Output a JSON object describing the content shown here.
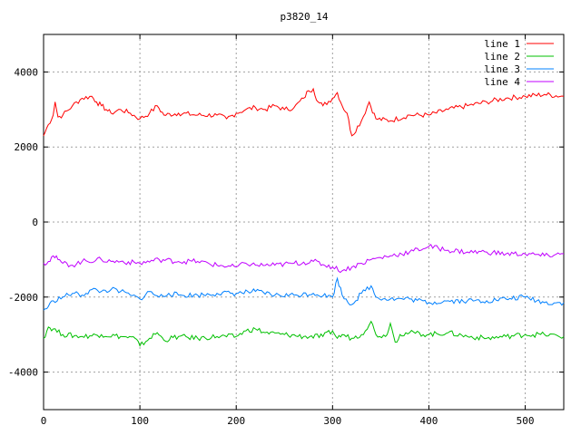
{
  "chart_data": {
    "type": "line",
    "title": "p3820_14",
    "xlabel": "",
    "ylabel": "",
    "xlim": [
      0,
      540
    ],
    "ylim": [
      -5000,
      5000
    ],
    "xticks": [
      0,
      100,
      200,
      300,
      400,
      500
    ],
    "yticks": [
      -4000,
      -2000,
      0,
      2000,
      4000
    ],
    "grid": true,
    "legend_position": "top-right",
    "series": [
      {
        "name": "line 1",
        "color": "#ff0000",
        "x": [
          0,
          5,
          10,
          12,
          15,
          20,
          30,
          40,
          50,
          55,
          60,
          65,
          70,
          80,
          90,
          100,
          110,
          118,
          125,
          140,
          160,
          180,
          190,
          200,
          210,
          220,
          230,
          240,
          250,
          260,
          270,
          275,
          280,
          285,
          290,
          300,
          305,
          310,
          315,
          320,
          330,
          338,
          345,
          360,
          380,
          400,
          420,
          440,
          460,
          480,
          500,
          520,
          540
        ],
        "y": [
          2300,
          2600,
          2850,
          3200,
          2800,
          2850,
          3100,
          3300,
          3350,
          3200,
          3100,
          3000,
          2900,
          3000,
          2900,
          2750,
          2900,
          3100,
          2850,
          2900,
          2850,
          2850,
          2750,
          2900,
          3000,
          3050,
          3000,
          3100,
          3000,
          3050,
          3300,
          3500,
          3550,
          3200,
          3100,
          3300,
          3450,
          3100,
          2900,
          2300,
          2700,
          3200,
          2750,
          2700,
          2850,
          2850,
          3000,
          3100,
          3200,
          3300,
          3350,
          3400,
          3350
        ]
      },
      {
        "name": "line 2",
        "color": "#00c000",
        "x": [
          0,
          5,
          10,
          20,
          40,
          60,
          80,
          95,
          100,
          110,
          118,
          125,
          140,
          160,
          180,
          200,
          210,
          220,
          230,
          250,
          270,
          290,
          300,
          305,
          310,
          320,
          330,
          340,
          345,
          355,
          360,
          365,
          370,
          380,
          400,
          420,
          440,
          460,
          480,
          500,
          520,
          540
        ],
        "y": [
          -3100,
          -2800,
          -2850,
          -3000,
          -3050,
          -3000,
          -3050,
          -3100,
          -3300,
          -3100,
          -2950,
          -3150,
          -3050,
          -3100,
          -3050,
          -3050,
          -2900,
          -2850,
          -2950,
          -3000,
          -3050,
          -3050,
          -2900,
          -3100,
          -3000,
          -3100,
          -3000,
          -2650,
          -3000,
          -3050,
          -2700,
          -3200,
          -3000,
          -2950,
          -3000,
          -2950,
          -3050,
          -3100,
          -3050,
          -3000,
          -3000,
          -3050
        ]
      },
      {
        "name": "line 3",
        "color": "#0080ff",
        "x": [
          0,
          5,
          10,
          20,
          30,
          40,
          50,
          60,
          70,
          80,
          90,
          100,
          110,
          120,
          130,
          140,
          160,
          180,
          200,
          220,
          240,
          260,
          280,
          300,
          305,
          310,
          320,
          330,
          340,
          345,
          360,
          380,
          400,
          420,
          440,
          460,
          480,
          500,
          520,
          540
        ],
        "y": [
          -2350,
          -2250,
          -2100,
          -2000,
          -1900,
          -1950,
          -1800,
          -1850,
          -1800,
          -1850,
          -1950,
          -2050,
          -1850,
          -2000,
          -1900,
          -1950,
          -1950,
          -1900,
          -1900,
          -1850,
          -1950,
          -1950,
          -1900,
          -2000,
          -1500,
          -1950,
          -2200,
          -1900,
          -1700,
          -2000,
          -2050,
          -2050,
          -2150,
          -2100,
          -2100,
          -2100,
          -2050,
          -2000,
          -2150,
          -2150
        ]
      },
      {
        "name": "line 4",
        "color": "#c000ff",
        "x": [
          0,
          5,
          10,
          15,
          20,
          30,
          40,
          60,
          70,
          80,
          100,
          120,
          140,
          160,
          180,
          200,
          210,
          220,
          240,
          260,
          280,
          300,
          310,
          320,
          330,
          340,
          350,
          360,
          380,
          400,
          420,
          440,
          460,
          480,
          500,
          520,
          540
        ],
        "y": [
          -1100,
          -1050,
          -900,
          -1000,
          -1100,
          -1150,
          -1050,
          -1000,
          -1050,
          -1050,
          -1100,
          -1000,
          -1050,
          -1050,
          -1150,
          -1200,
          -1100,
          -1150,
          -1150,
          -1100,
          -1050,
          -1200,
          -1300,
          -1200,
          -1100,
          -1000,
          -950,
          -900,
          -800,
          -650,
          -750,
          -800,
          -800,
          -850,
          -850,
          -900,
          -850
        ]
      }
    ]
  }
}
